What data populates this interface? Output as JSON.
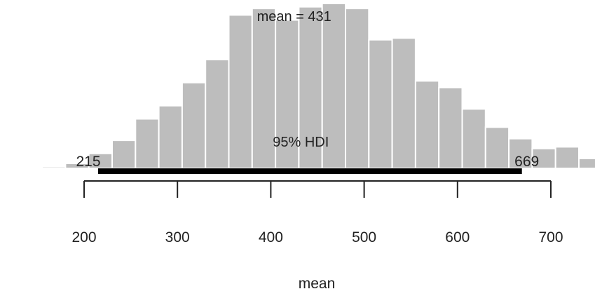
{
  "chart_data": {
    "type": "bar",
    "title": "",
    "xlabel": "mean",
    "ylabel": "",
    "xlim": [
      155,
      750
    ],
    "ylim": [
      0,
      1
    ],
    "grid": false,
    "bar_color": "#bdbdbd",
    "bar_edge_color": "#ffffff",
    "hdi_color": "#000000",
    "bins": [
      {
        "left": 155,
        "right": 180,
        "value": 0.01
      },
      {
        "left": 180,
        "right": 205,
        "value": 0.03
      },
      {
        "left": 205,
        "right": 230,
        "value": 0.09
      },
      {
        "left": 230,
        "right": 255,
        "value": 0.17
      },
      {
        "left": 255,
        "right": 280,
        "value": 0.3
      },
      {
        "left": 280,
        "right": 305,
        "value": 0.38
      },
      {
        "left": 305,
        "right": 330,
        "value": 0.52
      },
      {
        "left": 330,
        "right": 355,
        "value": 0.66
      },
      {
        "left": 355,
        "right": 380,
        "value": 0.93
      },
      {
        "left": 380,
        "right": 405,
        "value": 0.97
      },
      {
        "left": 405,
        "right": 430,
        "value": 0.9
      },
      {
        "left": 430,
        "right": 455,
        "value": 0.98
      },
      {
        "left": 455,
        "right": 480,
        "value": 1.0
      },
      {
        "left": 480,
        "right": 505,
        "value": 0.97
      },
      {
        "left": 505,
        "right": 530,
        "value": 0.78
      },
      {
        "left": 530,
        "right": 555,
        "value": 0.79
      },
      {
        "left": 555,
        "right": 580,
        "value": 0.53
      },
      {
        "left": 580,
        "right": 605,
        "value": 0.49
      },
      {
        "left": 605,
        "right": 630,
        "value": 0.36
      },
      {
        "left": 630,
        "right": 655,
        "value": 0.25
      },
      {
        "left": 655,
        "right": 680,
        "value": 0.18
      },
      {
        "left": 680,
        "right": 705,
        "value": 0.12
      },
      {
        "left": 705,
        "right": 730,
        "value": 0.13
      },
      {
        "left": 730,
        "right": 750,
        "value": 0.06
      }
    ],
    "x_ticks": [
      200,
      300,
      400,
      500,
      600,
      700
    ],
    "x_tick_labels": [
      "200",
      "300",
      "400",
      "500",
      "600",
      "700"
    ],
    "mean_value": 431,
    "mean_label": "mean = 431",
    "hdi": {
      "label": "95% HDI",
      "low": 215,
      "high": 669,
      "low_label": "215",
      "high_label": "669"
    }
  }
}
